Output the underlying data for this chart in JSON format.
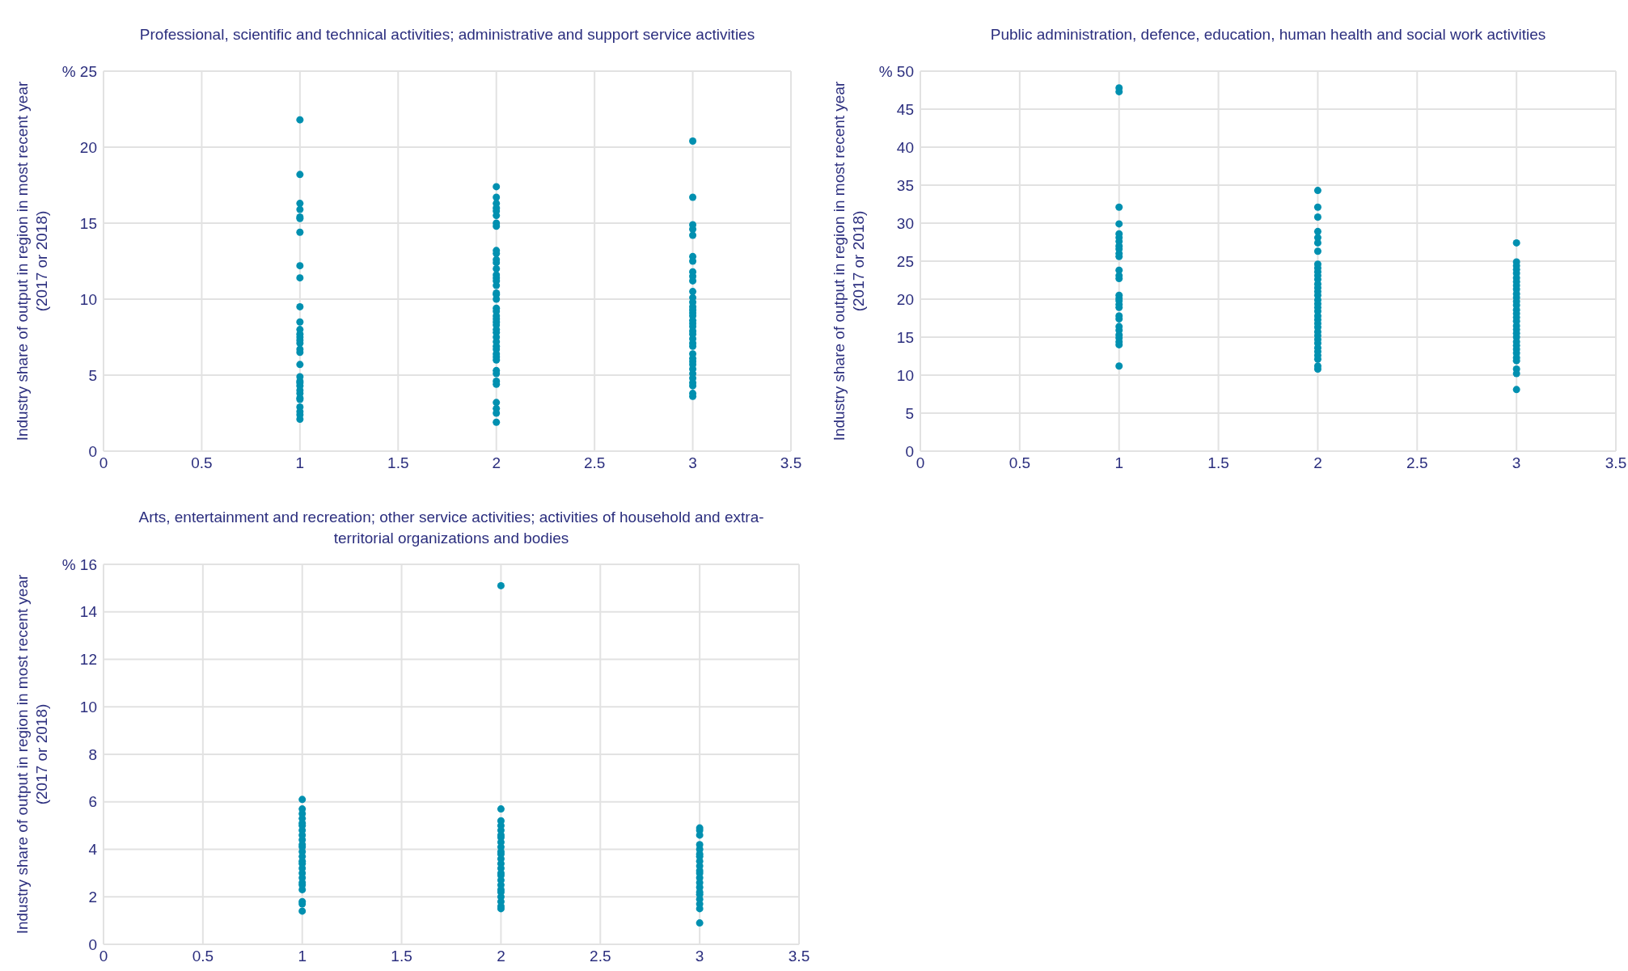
{
  "chart_data": [
    {
      "type": "scatter",
      "title": "Professional, scientific and technical activities; administrative and support service activities",
      "ylabel": "Industry share of output in region in most recent year (2017 or 2018)",
      "color": "#0090b0",
      "marker": "circle",
      "grid": true,
      "xlim": [
        0,
        3.5
      ],
      "xticks": [
        0,
        0.5,
        1,
        1.5,
        2,
        2.5,
        3,
        3.5
      ],
      "ylim": [
        0,
        25
      ],
      "yticks": [
        0,
        5,
        10,
        15,
        20,
        {
          "value": 25,
          "label": "% 25"
        }
      ],
      "x": [
        1,
        1,
        1,
        1,
        1,
        1,
        1,
        1,
        1,
        1,
        1,
        1,
        1,
        1,
        1,
        1,
        1,
        1,
        1,
        1,
        1,
        1,
        1,
        1,
        1,
        1,
        1,
        1,
        1,
        1,
        1,
        2,
        2,
        2,
        2,
        2,
        2,
        2,
        2,
        2,
        2,
        2,
        2,
        2,
        2,
        2,
        2,
        2,
        2,
        2,
        2,
        2,
        2,
        2,
        2,
        2,
        2,
        2,
        2,
        2,
        2,
        2,
        2,
        2,
        2,
        2,
        2,
        2,
        2,
        2,
        2,
        2,
        2,
        2,
        3,
        3,
        3,
        3,
        3,
        3,
        3,
        3,
        3,
        3,
        3,
        3,
        3,
        3,
        3,
        3,
        3,
        3,
        3,
        3,
        3,
        3,
        3,
        3,
        3,
        3,
        3,
        3,
        3,
        3,
        3,
        3,
        3,
        3,
        3,
        3
      ],
      "values": [
        21.8,
        18.2,
        16.3,
        15.9,
        15.4,
        15.3,
        14.4,
        12.2,
        11.4,
        9.5,
        8.5,
        8.0,
        7.7,
        7.5,
        7.3,
        7.1,
        6.7,
        6.5,
        5.7,
        4.9,
        4.6,
        4.5,
        4.3,
        4.0,
        3.8,
        3.5,
        3.4,
        2.9,
        2.6,
        2.4,
        2.1,
        17.4,
        16.7,
        16.3,
        16.0,
        15.8,
        15.5,
        15.0,
        14.8,
        13.2,
        13.0,
        12.6,
        12.4,
        12.0,
        11.6,
        11.4,
        11.2,
        10.9,
        10.4,
        10.3,
        10.0,
        9.4,
        9.2,
        8.9,
        8.7,
        8.5,
        8.3,
        8.0,
        7.8,
        7.5,
        7.2,
        6.9,
        6.7,
        6.4,
        6.2,
        6.0,
        5.3,
        5.1,
        4.6,
        4.4,
        3.2,
        2.8,
        2.5,
        1.9,
        20.4,
        16.7,
        14.9,
        14.6,
        14.2,
        12.8,
        12.5,
        11.8,
        11.5,
        11.2,
        10.5,
        10.1,
        9.8,
        9.5,
        9.3,
        9.1,
        8.9,
        8.6,
        8.4,
        8.2,
        7.9,
        7.7,
        7.4,
        7.1,
        6.9,
        6.4,
        6.1,
        5.9,
        5.7,
        5.4,
        5.1,
        4.8,
        4.5,
        4.3,
        3.8,
        3.6
      ]
    },
    {
      "type": "scatter",
      "title": "Public administration, defence, education, human health and social work activities",
      "ylabel": "Industry share of output in region in most recent year (2017 or 2018)",
      "color": "#0090b0",
      "marker": "circle",
      "grid": true,
      "xlim": [
        0,
        3.5
      ],
      "xticks": [
        0,
        0.5,
        1,
        1.5,
        2,
        2.5,
        3,
        3.5
      ],
      "ylim": [
        0,
        50
      ],
      "yticks": [
        0,
        5,
        10,
        15,
        20,
        25,
        30,
        35,
        40,
        45,
        {
          "value": 50,
          "label": "% 50"
        }
      ],
      "x": [
        1,
        1,
        1,
        1,
        1,
        1,
        1,
        1,
        1,
        1,
        1,
        1,
        1,
        1,
        1,
        1,
        1,
        1,
        1,
        1,
        1,
        1,
        1,
        1,
        1,
        1,
        1,
        1,
        2,
        2,
        2,
        2,
        2,
        2,
        2,
        2,
        2,
        2,
        2,
        2,
        2,
        2,
        2,
        2,
        2,
        2,
        2,
        2,
        2,
        2,
        2,
        2,
        2,
        2,
        2,
        2,
        2,
        2,
        2,
        2,
        2,
        2,
        3,
        3,
        3,
        3,
        3,
        3,
        3,
        3,
        3,
        3,
        3,
        3,
        3,
        3,
        3,
        3,
        3,
        3,
        3,
        3,
        3,
        3,
        3,
        3,
        3,
        3,
        3,
        3,
        3,
        3
      ],
      "values": [
        47.8,
        47.3,
        32.1,
        29.9,
        28.6,
        28.1,
        27.6,
        27.0,
        26.6,
        26.0,
        25.6,
        23.8,
        23.1,
        22.7,
        20.5,
        20.1,
        19.8,
        19.3,
        18.9,
        17.8,
        17.4,
        16.4,
        15.9,
        15.3,
        14.9,
        14.4,
        14.0,
        11.2,
        34.3,
        32.1,
        30.8,
        28.9,
        28.1,
        27.4,
        26.3,
        24.6,
        24.1,
        23.6,
        23.1,
        22.6,
        22.0,
        21.5,
        21.0,
        20.5,
        19.9,
        19.4,
        18.9,
        18.4,
        17.8,
        17.3,
        16.8,
        16.3,
        15.7,
        15.2,
        14.7,
        14.2,
        13.6,
        13.1,
        12.6,
        12.1,
        11.2,
        10.8,
        27.4,
        24.9,
        24.4,
        23.9,
        23.4,
        22.8,
        22.3,
        21.8,
        21.3,
        20.7,
        20.2,
        19.7,
        19.2,
        18.6,
        18.1,
        17.6,
        17.1,
        16.5,
        16.0,
        15.5,
        15.0,
        14.4,
        13.9,
        13.4,
        12.9,
        12.3,
        11.9,
        10.8,
        10.2,
        8.1
      ]
    },
    {
      "type": "scatter",
      "title": "Arts, entertainment and recreation; other service activities; activities of household and extra-territorial organizations and bodies",
      "ylabel": "Industry share of output in region in most recent year (2017 or 2018)",
      "color": "#0090b0",
      "marker": "circle",
      "grid": true,
      "xlim": [
        0,
        3.5
      ],
      "xticks": [
        0,
        0.5,
        1,
        1.5,
        2,
        2.5,
        3,
        3.5
      ],
      "ylim": [
        0,
        16
      ],
      "yticks": [
        0,
        2,
        4,
        6,
        8,
        10,
        12,
        14,
        {
          "value": 16,
          "label": "% 16"
        }
      ],
      "x": [
        1,
        1,
        1,
        1,
        1,
        1,
        1,
        1,
        1,
        1,
        1,
        1,
        1,
        1,
        1,
        1,
        1,
        1,
        1,
        1,
        1,
        1,
        1,
        1,
        2,
        2,
        2,
        2,
        2,
        2,
        2,
        2,
        2,
        2,
        2,
        2,
        2,
        2,
        2,
        2,
        2,
        2,
        2,
        2,
        2,
        2,
        2,
        2,
        3,
        3,
        3,
        3,
        3,
        3,
        3,
        3,
        3,
        3,
        3,
        3,
        3,
        3,
        3,
        3,
        3,
        3,
        3,
        3
      ],
      "values": [
        6.1,
        5.7,
        5.5,
        5.3,
        5.1,
        5.0,
        4.8,
        4.6,
        4.4,
        4.2,
        4.1,
        3.9,
        3.7,
        3.5,
        3.4,
        3.2,
        3.0,
        2.8,
        2.6,
        2.5,
        2.3,
        1.8,
        1.7,
        1.4,
        15.1,
        5.7,
        5.2,
        5.0,
        4.8,
        4.6,
        4.5,
        4.3,
        4.1,
        3.9,
        3.8,
        3.6,
        3.4,
        3.2,
        3.0,
        2.9,
        2.7,
        2.5,
        2.3,
        2.2,
        2.0,
        1.8,
        1.6,
        1.5,
        4.9,
        4.8,
        4.6,
        4.2,
        4.0,
        3.8,
        3.7,
        3.5,
        3.3,
        3.1,
        3.0,
        2.8,
        2.6,
        2.4,
        2.2,
        2.1,
        1.9,
        1.7,
        1.5,
        0.9
      ]
    }
  ]
}
